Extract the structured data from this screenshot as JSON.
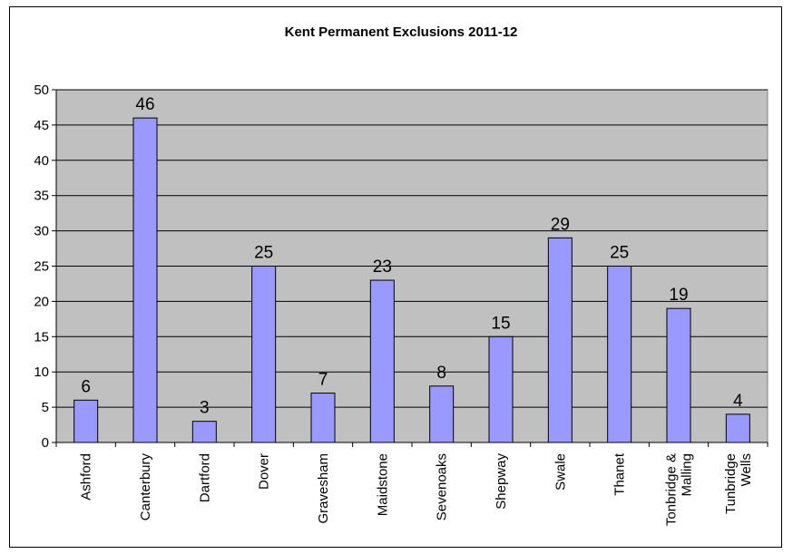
{
  "chart_data": {
    "type": "bar",
    "title": "Kent Permanent Exclusions 2011-12",
    "xlabel": "",
    "ylabel": "",
    "categories": [
      "Ashford",
      "Canterbury",
      "Dartford",
      "Dover",
      "Gravesham",
      "Maidstone",
      "Sevenoaks",
      "Shepway",
      "Swale",
      "Thanet",
      "Tonbridge & Malling",
      "Tunbridge Wells"
    ],
    "category_lines": [
      [
        "Ashford"
      ],
      [
        "Canterbury"
      ],
      [
        "Dartford"
      ],
      [
        "Dover"
      ],
      [
        "Gravesham"
      ],
      [
        "Maidstone"
      ],
      [
        "Sevenoaks"
      ],
      [
        "Shepway"
      ],
      [
        "Swale"
      ],
      [
        "Thanet"
      ],
      [
        "Tonbridge &",
        "Malling"
      ],
      [
        "Tunbridge",
        "Wells"
      ]
    ],
    "values": [
      6,
      46,
      3,
      25,
      7,
      23,
      8,
      15,
      29,
      25,
      19,
      4
    ],
    "data_labels": [
      "6",
      "46",
      "3",
      "25",
      "7",
      "23",
      "8",
      "15",
      "29",
      "25",
      "19",
      "4"
    ],
    "ylim": [
      0,
      50
    ],
    "yticks": [
      0,
      5,
      10,
      15,
      20,
      25,
      30,
      35,
      40,
      45,
      50
    ],
    "grid": true,
    "legend": false,
    "colors": {
      "plot_background": "#c0c0c0",
      "bar_fill": "#9999ff",
      "bar_stroke": "#000000",
      "gridline": "#000000"
    }
  }
}
